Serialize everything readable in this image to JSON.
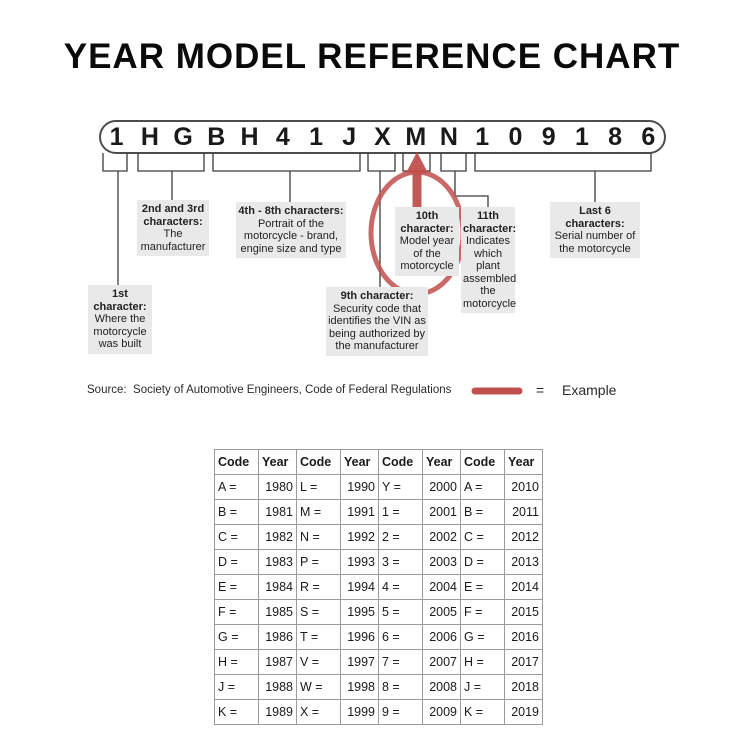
{
  "page": {
    "title": "YEAR MODEL REFERENCE CHART"
  },
  "vin": {
    "characters": [
      "1",
      "H",
      "G",
      "B",
      "H",
      "4",
      "1",
      "J",
      "X",
      "M",
      "N",
      "1",
      "0",
      "9",
      "1",
      "8",
      "6"
    ]
  },
  "callouts": [
    {
      "title": "1st character:",
      "desc": "Where the motorcycle was built"
    },
    {
      "title": "2nd and 3rd characters:",
      "desc": "The manufacturer"
    },
    {
      "title": "4th - 8th characters:",
      "desc": "Portrait of the motorcycle - brand, engine size and type"
    },
    {
      "title": "9th character:",
      "desc": "Security code that identifies the VIN as being authorized by the manufacturer"
    },
    {
      "title": "10th character:",
      "desc": "Model year of the motorcycle"
    },
    {
      "title": "11th character:",
      "desc": "Indicates which plant assembled the motorcycle"
    },
    {
      "title": "Last 6 characters:",
      "desc": "Serial number of the motorcycle"
    }
  ],
  "source_line": "Source:  Society of Automotive Engineers, Code of Federal Regulations",
  "legend": {
    "equals": "=",
    "label": "Example"
  },
  "highlighted_example": {
    "vin_character": "M",
    "table_code": "M =",
    "table_year": "1991"
  },
  "colors": {
    "accent_red": "#c0504d",
    "callout_gray": "#e9e9e9"
  },
  "table": {
    "headers": [
      "Code",
      "Year",
      "Code",
      "Year",
      "Code",
      "Year",
      "Code",
      "Year"
    ],
    "rows": [
      [
        "A =",
        "1980",
        "L =",
        "1990",
        "Y =",
        "2000",
        "A =",
        "2010"
      ],
      [
        "B =",
        "1981",
        "M =",
        "1991",
        "1 =",
        "2001",
        "B =",
        "2011"
      ],
      [
        "C =",
        "1982",
        "N =",
        "1992",
        "2 =",
        "2002",
        "C =",
        "2012"
      ],
      [
        "D =",
        "1983",
        "P =",
        "1993",
        "3 =",
        "2003",
        "D =",
        "2013"
      ],
      [
        "E =",
        "1984",
        "R =",
        "1994",
        "4 =",
        "2004",
        "E =",
        "2014"
      ],
      [
        "F =",
        "1985",
        "S =",
        "1995",
        "5 =",
        "2005",
        "F =",
        "2015"
      ],
      [
        "G =",
        "1986",
        "T =",
        "1996",
        "6 =",
        "2006",
        "G =",
        "2016"
      ],
      [
        "H =",
        "1987",
        "V =",
        "1997",
        "7 =",
        "2007",
        "H =",
        "2017"
      ],
      [
        "J =",
        "1988",
        "W =",
        "1998",
        "8 =",
        "2008",
        "J =",
        "2018"
      ],
      [
        "K =",
        "1989",
        "X =",
        "1999",
        "9 =",
        "2009",
        "K =",
        "2019"
      ]
    ]
  }
}
